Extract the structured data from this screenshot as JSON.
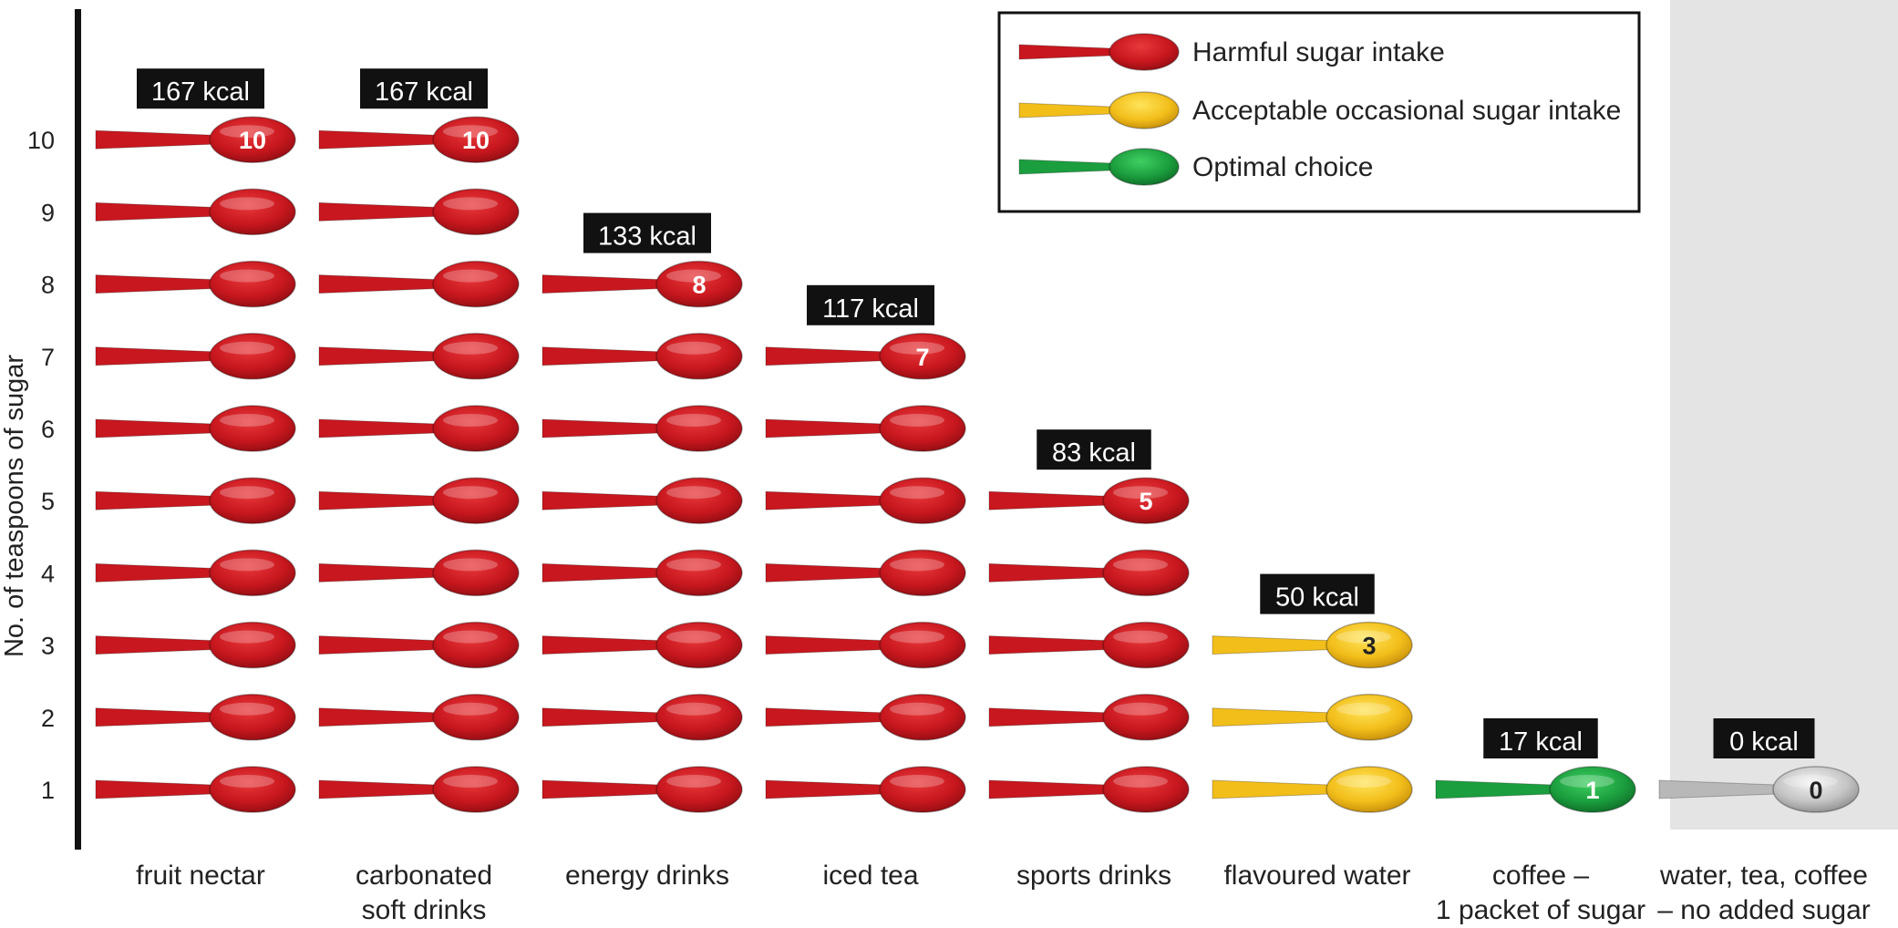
{
  "chart_data": {
    "type": "bar",
    "ylabel": "No. of teaspoons of sugar",
    "yticks": [
      "1",
      "2",
      "3",
      "4",
      "5",
      "6",
      "7",
      "8",
      "9",
      "10"
    ],
    "categories": [
      {
        "lines": [
          "fruit nectar"
        ],
        "value": 10,
        "kcal": "167 kcal",
        "level": "harmful"
      },
      {
        "lines": [
          "carbonated",
          "soft drinks"
        ],
        "value": 10,
        "kcal": "167 kcal",
        "level": "harmful"
      },
      {
        "lines": [
          "energy drinks"
        ],
        "value": 8,
        "kcal": "133 kcal",
        "level": "harmful"
      },
      {
        "lines": [
          "iced tea"
        ],
        "value": 7,
        "kcal": "117 kcal",
        "level": "harmful"
      },
      {
        "lines": [
          "sports drinks"
        ],
        "value": 5,
        "kcal": "83 kcal",
        "level": "harmful"
      },
      {
        "lines": [
          "flavoured water"
        ],
        "value": 3,
        "kcal": "50 kcal",
        "level": "acceptable"
      },
      {
        "lines": [
          "coffee –",
          "1 packet of sugar"
        ],
        "value": 1,
        "kcal": "17 kcal",
        "level": "optimal"
      },
      {
        "lines": [
          "water, tea, coffee",
          "– no added sugar"
        ],
        "value": 0,
        "kcal": "0 kcal",
        "level": "none"
      }
    ],
    "legend": [
      {
        "label": "Harmful sugar intake",
        "level": "harmful"
      },
      {
        "label": "Acceptable occasional sugar intake",
        "level": "acceptable"
      },
      {
        "label": "Optimal choice",
        "level": "optimal"
      }
    ],
    "legend_position": "top-right",
    "colors": {
      "harmful": "#c8171e",
      "acceptable": "#f2be1a",
      "optimal": "#1b9e3e",
      "none": "#b8b8b8",
      "highlight_band": "#e4e4e4"
    }
  }
}
